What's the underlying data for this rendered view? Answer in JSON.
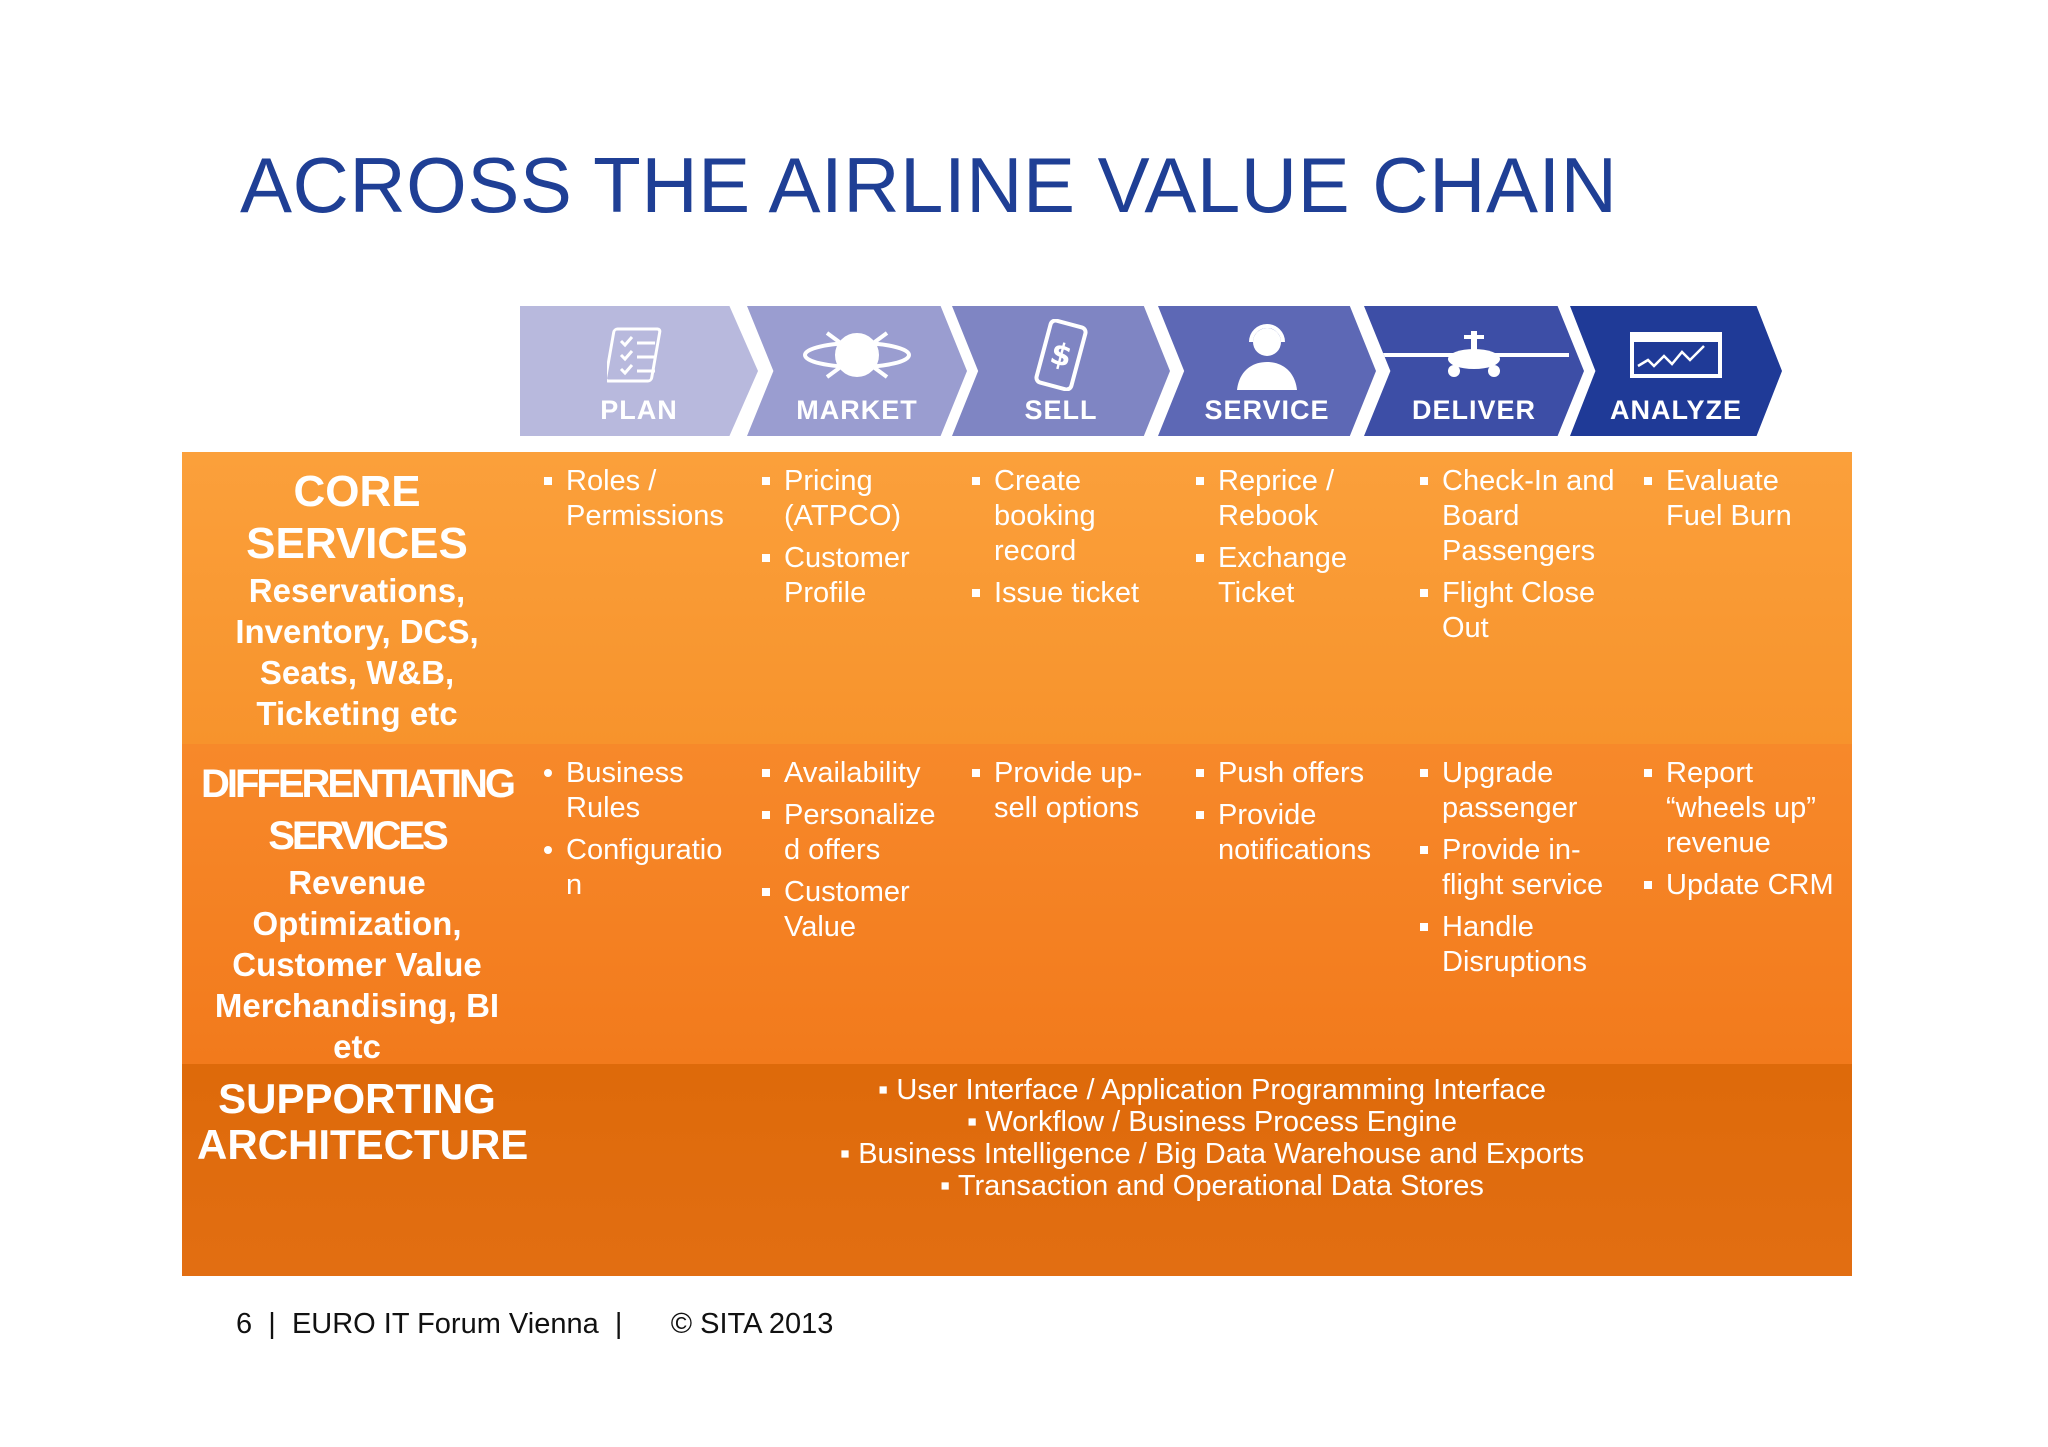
{
  "title": "ACROSS THE AIRLINE VALUE CHAIN",
  "stages": [
    {
      "label": "PLAN",
      "icon": "checklist-icon",
      "color": "#b8b9dd"
    },
    {
      "label": "MARKET",
      "icon": "globe-icon",
      "color": "#9a9dd0"
    },
    {
      "label": "SELL",
      "icon": "phone-dollar-icon",
      "color": "#7f85c3"
    },
    {
      "label": "SERVICE",
      "icon": "agent-headset-icon",
      "color": "#5d68b5"
    },
    {
      "label": "DELIVER",
      "icon": "airplane-icon",
      "color": "#3d4ea6"
    },
    {
      "label": "ANALYZE",
      "icon": "chart-screen-icon",
      "color": "#1f3a97"
    }
  ],
  "core": {
    "heading": "CORE SERVICES",
    "sub": "Reservations, Inventory, DCS, Seats, W&B, Ticketing etc",
    "cells": [
      [
        "Roles / Permissions"
      ],
      [
        "Pricing (ATPCO)",
        "Customer Profile"
      ],
      [
        "Create booking record",
        "Issue ticket"
      ],
      [
        "Reprice / Rebook",
        "Exchange Ticket"
      ],
      [
        "Check-In and Board Passengers",
        "Flight Close Out"
      ],
      [
        "Evaluate Fuel Burn"
      ]
    ]
  },
  "differentiating": {
    "heading": "DIFFERENTIATING SERVICES",
    "sub": "Revenue Optimization, Customer Value Merchandising, BI etc",
    "cells": [
      [
        "Business Rules",
        "Configuratio n"
      ],
      [
        "Availability",
        "Personalize d offers",
        "Customer Value"
      ],
      [
        "Provide up-sell options"
      ],
      [
        "Push offers",
        "Provide notifications"
      ],
      [
        "Upgrade passenger",
        "Provide in-flight service",
        "Handle Disruptions"
      ],
      [
        "Report “wheels up” revenue",
        "Update CRM"
      ]
    ]
  },
  "supporting": {
    "heading": "SUPPORTING ARCHITECTURE",
    "items": [
      "User Interface / Application Programming Interface",
      "Workflow  / Business Process Engine",
      "Business Intelligence / Big Data Warehouse and Exports",
      "Transaction and Operational Data Stores"
    ]
  },
  "footer": {
    "page": "6",
    "sep1": "|",
    "event": "EURO IT Forum Vienna",
    "sep2": "|",
    "copyright": "© SITA 2013"
  }
}
